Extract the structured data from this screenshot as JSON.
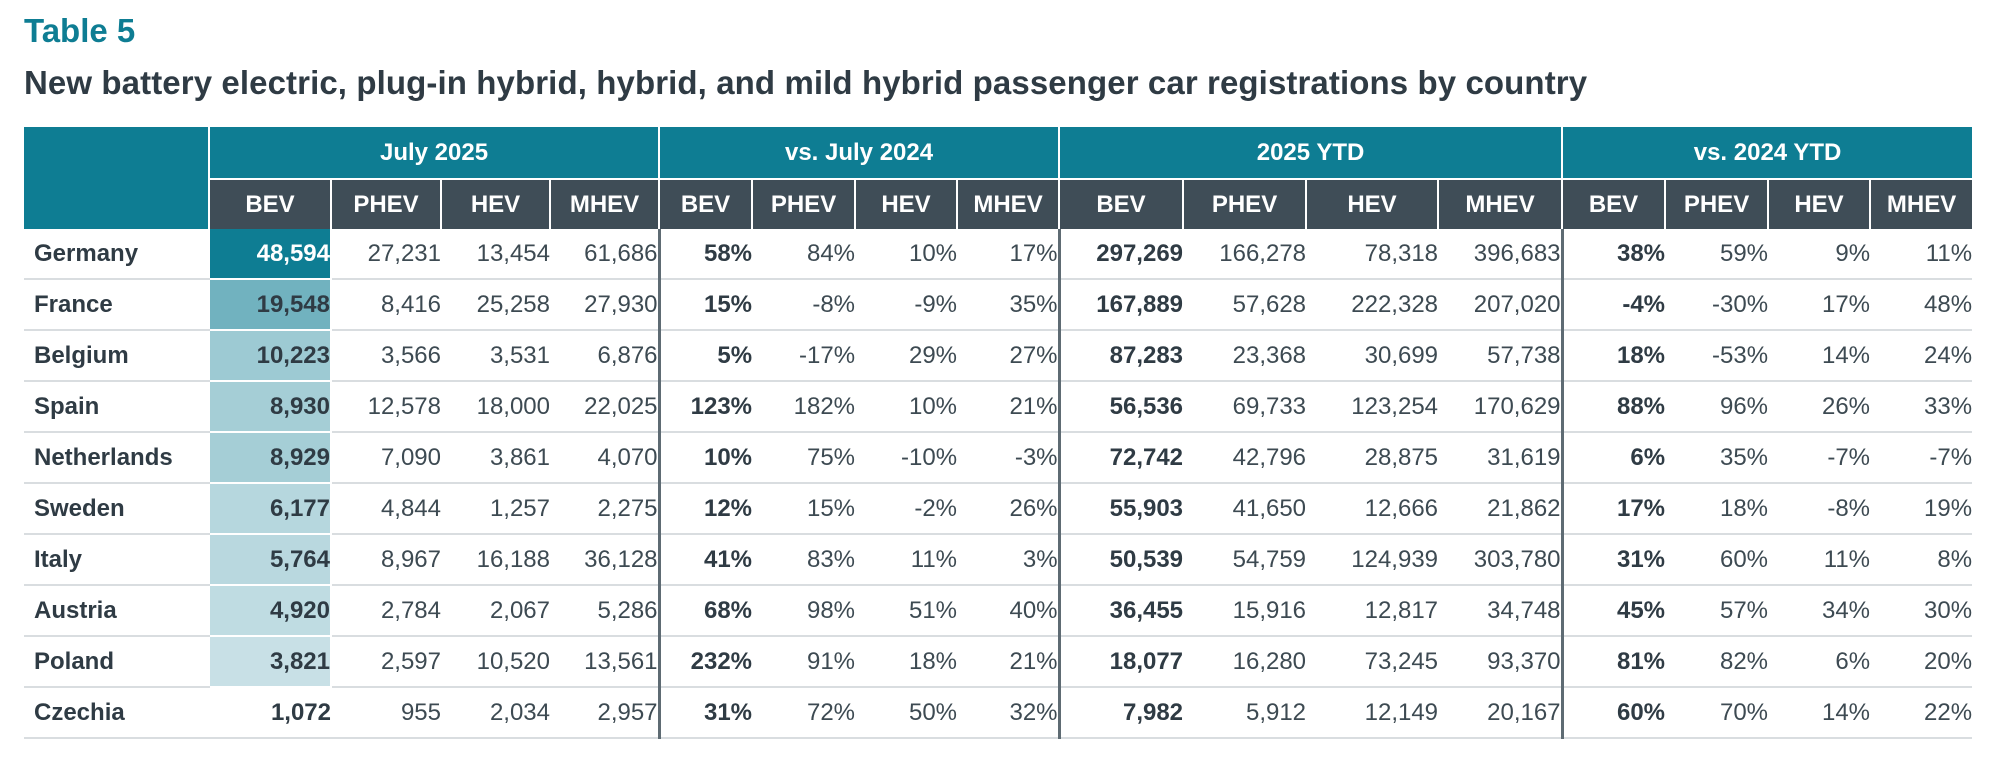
{
  "header": {
    "table_label": "Table 5",
    "title": "New battery electric, plug-in hybrid, hybrid, and mild hybrid passenger car registrations by country"
  },
  "colors": {
    "group_header_bg": "#0e7d93",
    "sub_header_bg": "#3f4d57",
    "heat_scale_low": "#eef5f7",
    "heat_scale_high": "#0e7d93"
  },
  "table": {
    "groups": [
      "July 2025",
      "vs. July 2024",
      "2025 YTD",
      "vs. 2024 YTD"
    ],
    "sub_headers": [
      "BEV",
      "PHEV",
      "HEV",
      "MHEV"
    ],
    "rows": [
      {
        "country": "Germany",
        "cells": [
          "48,594",
          "27,231",
          "13,454",
          "61,686",
          "58%",
          "84%",
          "10%",
          "17%",
          "297,269",
          "166,278",
          "78,318",
          "396,683",
          "38%",
          "59%",
          "9%",
          "11%"
        ],
        "bev_july": 48594
      },
      {
        "country": "France",
        "cells": [
          "19,548",
          "8,416",
          "25,258",
          "27,930",
          "15%",
          "-8%",
          "-9%",
          "35%",
          "167,889",
          "57,628",
          "222,328",
          "207,020",
          "-4%",
          "-30%",
          "17%",
          "48%"
        ],
        "bev_july": 19548
      },
      {
        "country": "Belgium",
        "cells": [
          "10,223",
          "3,566",
          "3,531",
          "6,876",
          "5%",
          "-17%",
          "29%",
          "27%",
          "87,283",
          "23,368",
          "30,699",
          "57,738",
          "18%",
          "-53%",
          "14%",
          "24%"
        ],
        "bev_july": 10223
      },
      {
        "country": "Spain",
        "cells": [
          "8,930",
          "12,578",
          "18,000",
          "22,025",
          "123%",
          "182%",
          "10%",
          "21%",
          "56,536",
          "69,733",
          "123,254",
          "170,629",
          "88%",
          "96%",
          "26%",
          "33%"
        ],
        "bev_july": 8930
      },
      {
        "country": "Netherlands",
        "cells": [
          "8,929",
          "7,090",
          "3,861",
          "4,070",
          "10%",
          "75%",
          "-10%",
          "-3%",
          "72,742",
          "42,796",
          "28,875",
          "31,619",
          "6%",
          "35%",
          "-7%",
          "-7%"
        ],
        "bev_july": 8929
      },
      {
        "country": "Sweden",
        "cells": [
          "6,177",
          "4,844",
          "1,257",
          "2,275",
          "12%",
          "15%",
          "-2%",
          "26%",
          "55,903",
          "41,650",
          "12,666",
          "21,862",
          "17%",
          "18%",
          "-8%",
          "19%"
        ],
        "bev_july": 6177
      },
      {
        "country": "Italy",
        "cells": [
          "5,764",
          "8,967",
          "16,188",
          "36,128",
          "41%",
          "83%",
          "11%",
          "3%",
          "50,539",
          "54,759",
          "124,939",
          "303,780",
          "31%",
          "60%",
          "11%",
          "8%"
        ],
        "bev_july": 5764
      },
      {
        "country": "Austria",
        "cells": [
          "4,920",
          "2,784",
          "2,067",
          "5,286",
          "68%",
          "98%",
          "51%",
          "40%",
          "36,455",
          "15,916",
          "12,817",
          "34,748",
          "45%",
          "57%",
          "34%",
          "30%"
        ],
        "bev_july": 4920
      },
      {
        "country": "Poland",
        "cells": [
          "3,821",
          "2,597",
          "10,520",
          "13,561",
          "232%",
          "91%",
          "18%",
          "21%",
          "18,077",
          "16,280",
          "73,245",
          "93,370",
          "81%",
          "82%",
          "6%",
          "20%"
        ],
        "bev_july": 3821
      },
      {
        "country": "Czechia",
        "cells": [
          "1,072",
          "955",
          "2,034",
          "2,957",
          "31%",
          "72%",
          "50%",
          "32%",
          "7,982",
          "5,912",
          "12,149",
          "20,167",
          "60%",
          "70%",
          "14%",
          "22%"
        ],
        "bev_july": 1072
      }
    ]
  }
}
